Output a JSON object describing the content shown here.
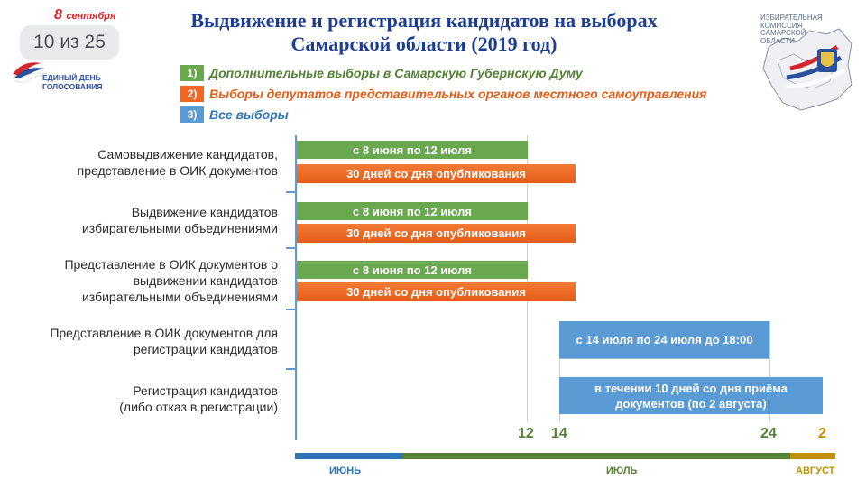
{
  "header": {
    "election_date": "8",
    "election_month": "сентября",
    "slide_counter": "10 из 25",
    "election_day_line1": "ЕДИНЫЙ ДЕНЬ",
    "election_day_line2": "ГОЛОСОВАНИЯ",
    "title_line1": "Выдвижение и регистрация кандидатов на выборах",
    "title_line2": "Самарской области (2019 год)",
    "commission_line1": "ИЗБИРАТЕЛЬНАЯ",
    "commission_line2": "КОМИССИЯ",
    "commission_line3": "САМАРСКОЙ",
    "commission_line4": "ОБЛАСТИ"
  },
  "colors": {
    "green": "#6aa84f",
    "orange": "#f26522",
    "blue": "#5b9bd5",
    "title": "#1d3d8f",
    "june": "#2e75b6",
    "july": "#548235",
    "august": "#bf9000"
  },
  "chart_data": {
    "type": "bar",
    "subtype": "gantt",
    "title": "Выдвижение и регистрация кандидатов на выборах Самарской области (2019 год)",
    "legend": [
      {
        "num": "1)",
        "text": "Дополнительные выборы в Самарскую Губернскую Думу",
        "color": "green"
      },
      {
        "num": "2)",
        "text": "Выборы депутатов представительных органов местного самоуправления",
        "color": "orange"
      },
      {
        "num": "3)",
        "text": "Все выборы",
        "color": "blue"
      }
    ],
    "categories": [
      [
        "Самовыдвижение кандидатов,",
        "представление в ОИК документов"
      ],
      [
        "Выдвижение кандидатов",
        "избирательными объединениями"
      ],
      [
        "Представление в ОИК документов о",
        "выдвижении кандидатов",
        "избирательными объединениями"
      ],
      [
        "Представление в ОИК документов для",
        "регистрации кандидатов"
      ],
      [
        "Регистрация кандидатов",
        "(либо отказ в регистрации)"
      ]
    ],
    "bars": [
      {
        "row": 0,
        "series": 1,
        "label": "с 8 июня по 12 июля"
      },
      {
        "row": 0,
        "series": 2,
        "label": "30 дней со дня опубликования"
      },
      {
        "row": 1,
        "series": 1,
        "label": "с 8 июня по 12 июля"
      },
      {
        "row": 1,
        "series": 2,
        "label": "30 дней со дня опубликования"
      },
      {
        "row": 2,
        "series": 1,
        "label": "с 8 июня по 12 июля"
      },
      {
        "row": 2,
        "series": 2,
        "label": "30 дней со дня опубликования"
      },
      {
        "row": 3,
        "series": 3,
        "label": "с 14 июля по 24 июля до 18:00"
      },
      {
        "row": 4,
        "series": 3,
        "label": "в течении 10 дней со дня приёма документов (по 2 августа)"
      }
    ],
    "x_tick_labels": [
      "12",
      "14",
      "24",
      "2"
    ],
    "months": [
      "ИЮНЬ",
      "ИЮЛЬ",
      "АВГУСТ"
    ]
  }
}
